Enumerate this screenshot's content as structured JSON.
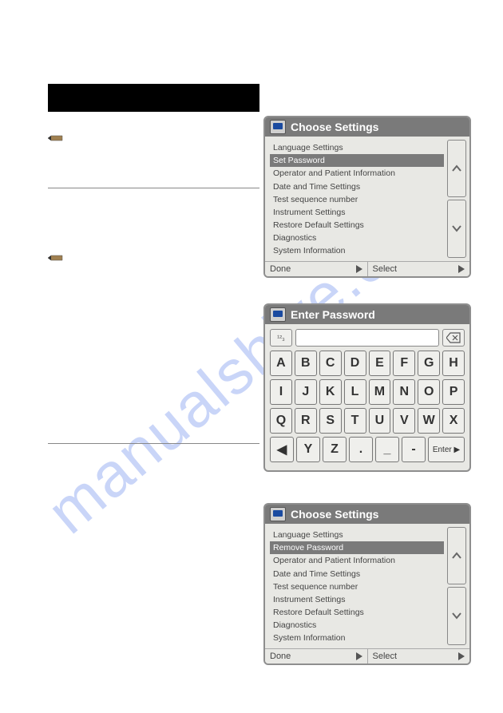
{
  "watermark": "manualshive.com",
  "panel1": {
    "title": "Choose Settings",
    "items": [
      "Language Settings",
      "Set Password",
      "Operator and Patient Information",
      "Date and Time Settings",
      "Test sequence number",
      "Instrument Settings",
      "Restore Default Settings",
      "Diagnostics",
      "System Information"
    ],
    "selected_index": 1,
    "done": "Done",
    "select": "Select"
  },
  "panel2": {
    "title": "Enter Password",
    "mode_label": "¹²₃",
    "rows": [
      [
        "A",
        "B",
        "C",
        "D",
        "E",
        "F",
        "G",
        "H"
      ],
      [
        "I",
        "J",
        "K",
        "L",
        "M",
        "N",
        "O",
        "P"
      ],
      [
        "Q",
        "R",
        "S",
        "T",
        "U",
        "V",
        "W",
        "X"
      ]
    ],
    "last_row": [
      "◀",
      "Y",
      "Z",
      ".",
      "_",
      "-"
    ],
    "enter": "Enter ▶"
  },
  "panel3": {
    "title": "Choose Settings",
    "items": [
      "Language Settings",
      "Remove Password",
      "Operator and Patient Information",
      "Date and Time Settings",
      "Test sequence number",
      "Instrument Settings",
      "Restore Default Settings",
      "Diagnostics",
      "System Information"
    ],
    "selected_index": 1,
    "done": "Done",
    "select": "Select"
  },
  "colors": {
    "panel_bg": "#e8e8e4",
    "header_bg": "#7a7a7a",
    "header_text": "#ffffff",
    "selected_bg": "#7a7a7a",
    "key_bg": "#efefec",
    "watermark": "rgba(60,105,231,0.28)"
  }
}
